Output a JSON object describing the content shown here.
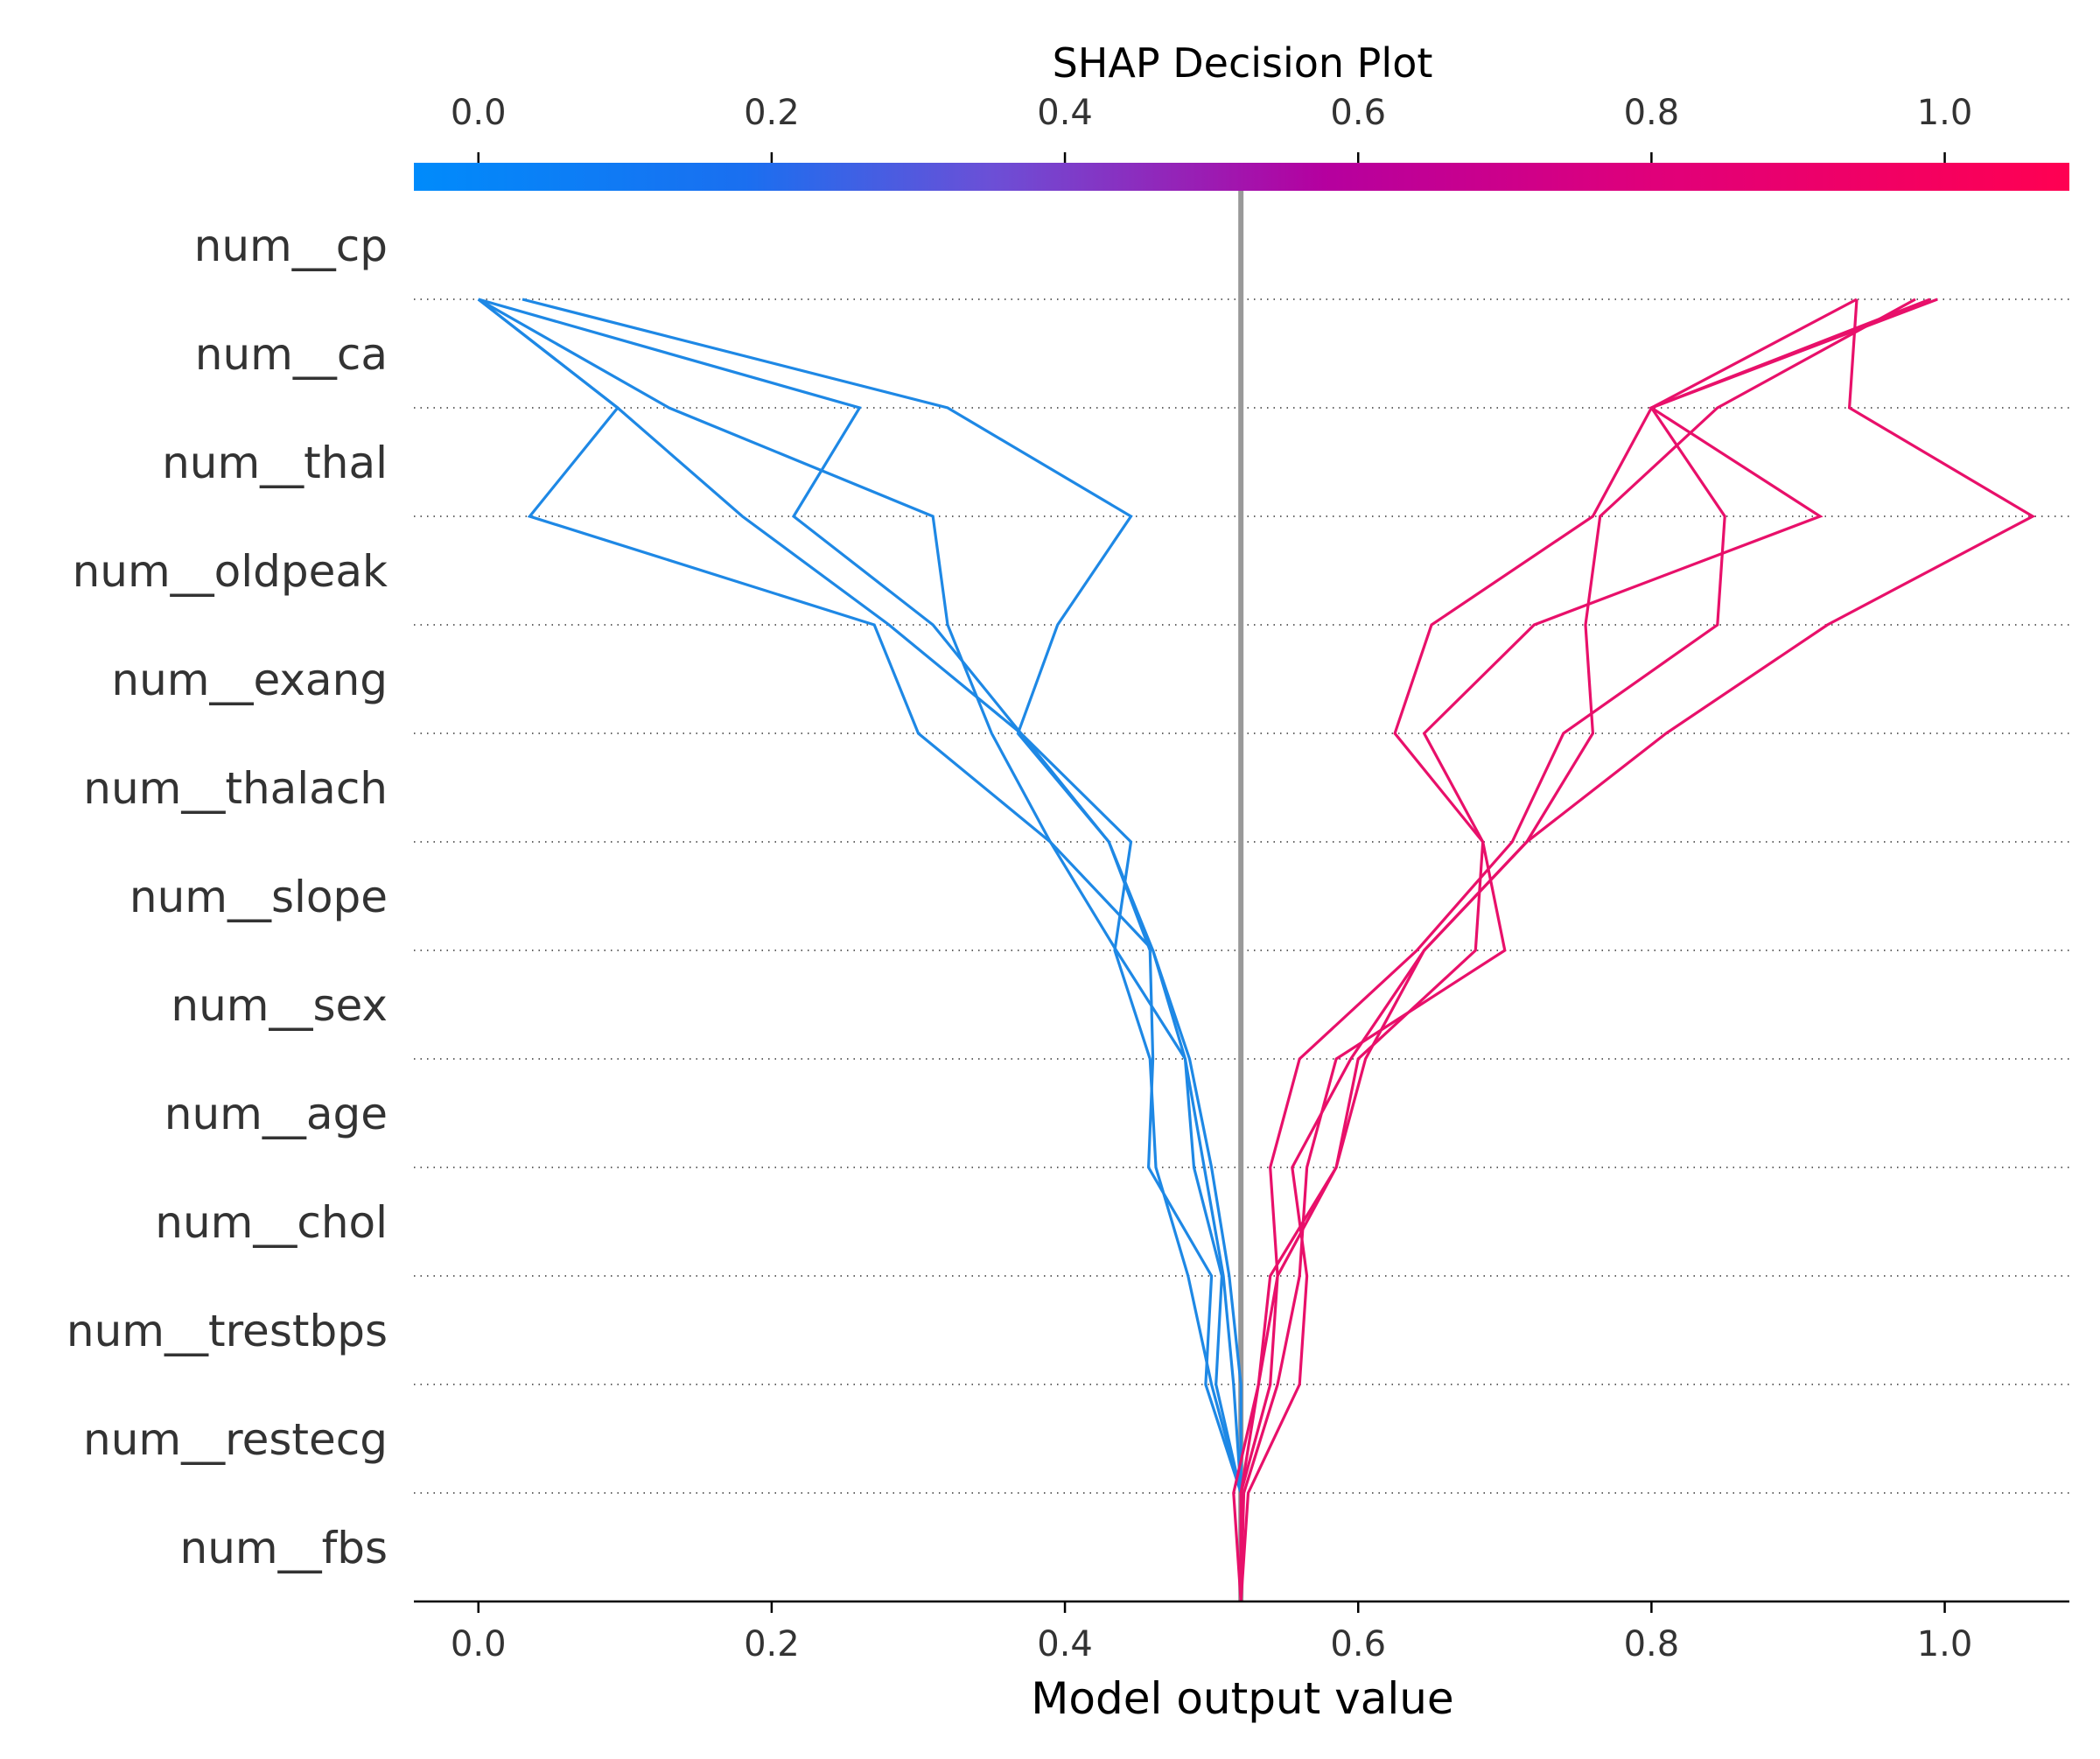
{
  "chart_data": {
    "type": "line",
    "title": "SHAP Decision Plot",
    "xlabel": "Model output value",
    "ylabel": "",
    "xlim": [
      -0.044,
      1.085
    ],
    "x_ticks": [
      "0.0",
      "0.2",
      "0.4",
      "0.6",
      "0.8",
      "1.0"
    ],
    "x_tick_values": [
      0,
      0.2,
      0.4,
      0.6,
      0.8,
      1.0
    ],
    "features": [
      "num__cp",
      "num__ca",
      "num__thal",
      "num__oldpeak",
      "num__exang",
      "num__thalach",
      "num__slope",
      "num__sex",
      "num__age",
      "num__chol",
      "num__trestbps",
      "num__restecg",
      "num__fbs"
    ],
    "base_value": 0.52,
    "colors": {
      "low": "#008bfb",
      "mid": "#b5009f",
      "high": "#ff0052",
      "base_line": "#999999",
      "neg_line": "#1e88e5",
      "pos_line": "#e8106a"
    },
    "grid": "dotted horizontal",
    "series": [
      {
        "values": [
          0.52,
          0.52,
          0.5,
          0.484,
          0.462,
          0.458,
          0.434,
          0.445,
          0.37,
          0.31,
          0.215,
          0.26,
          0.0
        ]
      },
      {
        "values": [
          0.52,
          0.52,
          0.496,
          0.5,
          0.457,
          0.46,
          0.458,
          0.43,
          0.37,
          0.28,
          0.18,
          0.095,
          0.0
        ]
      },
      {
        "values": [
          0.52,
          0.52,
          0.503,
          0.507,
          0.488,
          0.482,
          0.46,
          0.39,
          0.3,
          0.27,
          0.035,
          0.095,
          0.0
        ]
      },
      {
        "values": [
          0.52,
          0.52,
          0.515,
          0.508,
          0.495,
          0.482,
          0.435,
          0.39,
          0.35,
          0.32,
          0.31,
          0.13,
          0.0
        ]
      },
      {
        "values": [
          0.52,
          0.52,
          0.52,
          0.512,
          0.5,
          0.485,
          0.46,
          0.43,
          0.368,
          0.395,
          0.445,
          0.32,
          0.03
        ]
      },
      {
        "values": [
          0.52,
          0.515,
          0.532,
          0.545,
          0.585,
          0.6,
          0.68,
          0.685,
          0.625,
          0.65,
          0.76,
          0.8,
          0.99
        ]
      },
      {
        "values": [
          0.52,
          0.525,
          0.56,
          0.565,
          0.555,
          0.595,
          0.645,
          0.715,
          0.76,
          0.755,
          0.765,
          0.845,
          0.98
        ]
      },
      {
        "values": [
          0.52,
          0.522,
          0.545,
          0.56,
          0.565,
          0.585,
          0.7,
          0.685,
          0.645,
          0.72,
          0.915,
          0.8,
          0.995
        ]
      },
      {
        "values": [
          0.52,
          0.52,
          0.532,
          0.54,
          0.585,
          0.605,
          0.645,
          0.715,
          0.81,
          0.92,
          1.06,
          0.935,
          0.94
        ]
      },
      {
        "values": [
          0.52,
          0.52,
          0.54,
          0.545,
          0.54,
          0.56,
          0.64,
          0.705,
          0.74,
          0.845,
          0.85,
          0.8,
          0.94
        ]
      }
    ]
  }
}
